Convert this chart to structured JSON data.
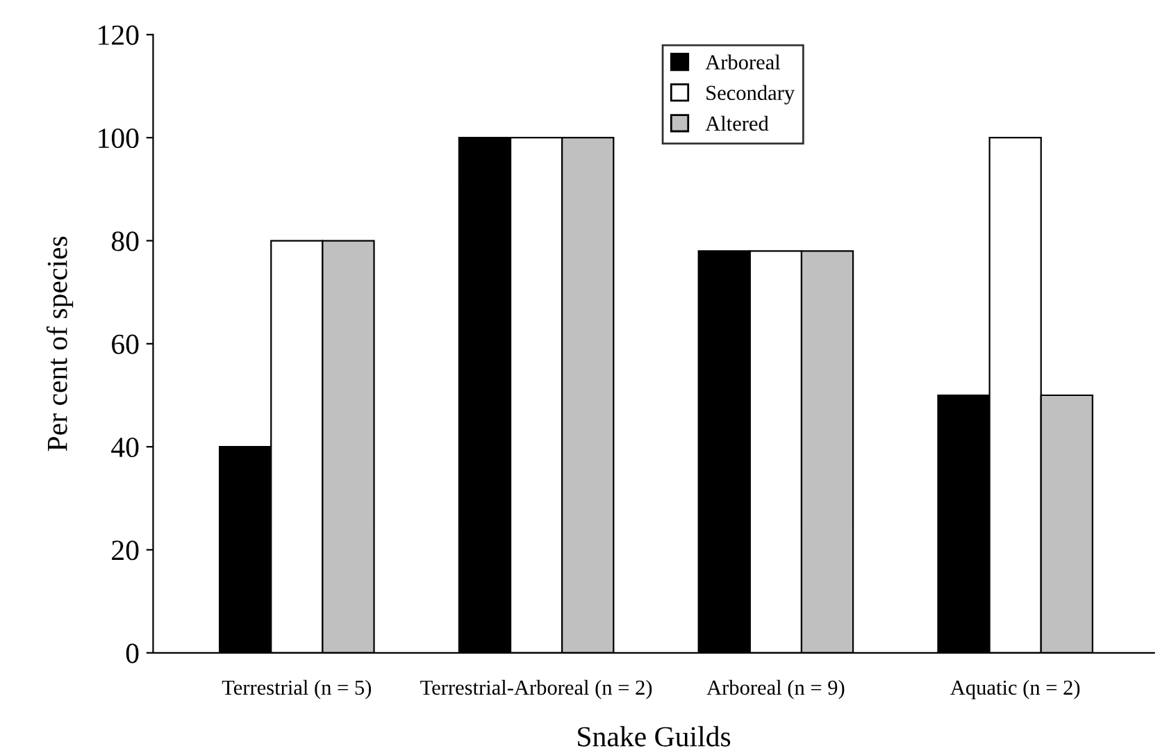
{
  "chart_data": {
    "type": "bar",
    "xlabel": "Snake Guilds",
    "ylabel": "Per cent of species",
    "categories": [
      "Terrestrial (n = 5)",
      "Terrestrial-Arboreal (n = 2)",
      "Arboreal (n = 9)",
      "Aquatic (n = 2)"
    ],
    "series": [
      {
        "name": "Arboreal",
        "color": "#000000",
        "values": [
          40,
          100,
          78,
          50
        ]
      },
      {
        "name": "Secondary",
        "color": "#ffffff",
        "values": [
          80,
          100,
          78,
          100
        ]
      },
      {
        "name": "Altered",
        "color": "#c0c0c0",
        "values": [
          80,
          100,
          78,
          50
        ]
      }
    ],
    "ylim": [
      0,
      120
    ],
    "yticks": [
      0,
      20,
      40,
      60,
      80,
      100,
      120
    ],
    "grid": false,
    "legend": "top"
  }
}
